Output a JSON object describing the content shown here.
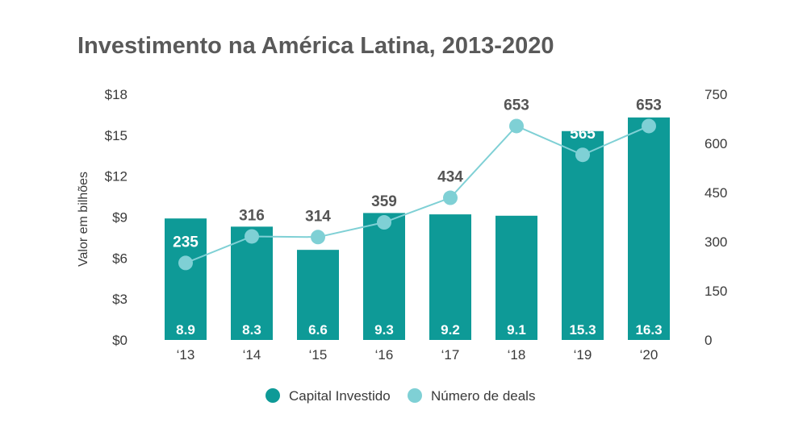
{
  "chart_data": {
    "type": "bar",
    "title": "Investimento na América Latina, 2013-2020",
    "ylabel": "Valor em bilhões",
    "categories": [
      "‘13",
      "‘14",
      "‘15",
      "‘16",
      "‘17",
      "‘18",
      "‘19",
      "‘20"
    ],
    "series": [
      {
        "name": "Capital Investido",
        "type": "bar",
        "axis": "left",
        "values": [
          8.9,
          8.3,
          6.6,
          9.3,
          9.2,
          9.1,
          15.3,
          16.3
        ],
        "labels": [
          "8.9",
          "8.3",
          "6.6",
          "9.3",
          "9.2",
          "9.1",
          "15.3",
          "16.3"
        ],
        "color": "#0e9a97"
      },
      {
        "name": "Número de deals",
        "type": "line",
        "axis": "right",
        "values": [
          235,
          316,
          314,
          359,
          434,
          653,
          565,
          653
        ],
        "labels": [
          "235",
          "316",
          "314",
          "359",
          "434",
          "653",
          "565",
          "653"
        ],
        "color": "#7fd0d5"
      }
    ],
    "y_left": {
      "ylim": [
        0,
        18
      ],
      "ticks": [
        0,
        3,
        6,
        9,
        12,
        15,
        18
      ],
      "tick_labels": [
        "$0",
        "$3",
        "$6",
        "$9",
        "$12",
        "$15",
        "$18"
      ]
    },
    "y_right": {
      "ylim": [
        0,
        750
      ],
      "ticks": [
        0,
        150,
        300,
        450,
        600,
        750
      ],
      "tick_labels": [
        "0",
        "150",
        "300",
        "450",
        "600",
        "750"
      ]
    },
    "grid": false,
    "legend": "bottom-center",
    "colors": {
      "title": "#595959",
      "text": "#3a3a3a",
      "deal_label_dark": "#555555",
      "deal_label_light": "#ffffff"
    }
  }
}
